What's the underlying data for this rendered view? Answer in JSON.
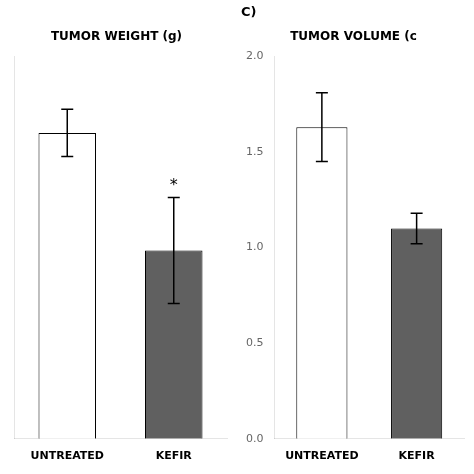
{
  "chart_data": [
    {
      "type": "bar",
      "title": "TUMOR WEIGHT (g)",
      "categories": [
        "UNTREATED",
        "KEFIR"
      ],
      "values": [
        0.52,
        0.32
      ],
      "errors": [
        0.04,
        0.09
      ],
      "colors": [
        "#ffffff",
        "#606060"
      ],
      "ylim": [
        0,
        0.65
      ],
      "grid": false,
      "tick_labels": "x",
      "annotations": [
        {
          "text": "*",
          "category": "KEFIR"
        }
      ]
    },
    {
      "type": "bar",
      "title": "TUMOR VOLUME (c",
      "categories": [
        "UNTREATED",
        "KEFIR"
      ],
      "values": [
        1.63,
        1.1
      ],
      "errors": [
        0.18,
        0.08
      ],
      "colors": [
        "#ffffff",
        "#606060"
      ],
      "ylim": [
        0,
        2.0
      ],
      "yticks": [
        {
          "value": 0,
          "label": "0.0"
        },
        0.5,
        {
          "value": 1.0,
          "label": "1.0"
        },
        1.5,
        {
          "value": 2.0,
          "label": "2.0"
        }
      ],
      "grid": false,
      "annotations": [
        {
          "text": "C)"
        }
      ]
    }
  ]
}
